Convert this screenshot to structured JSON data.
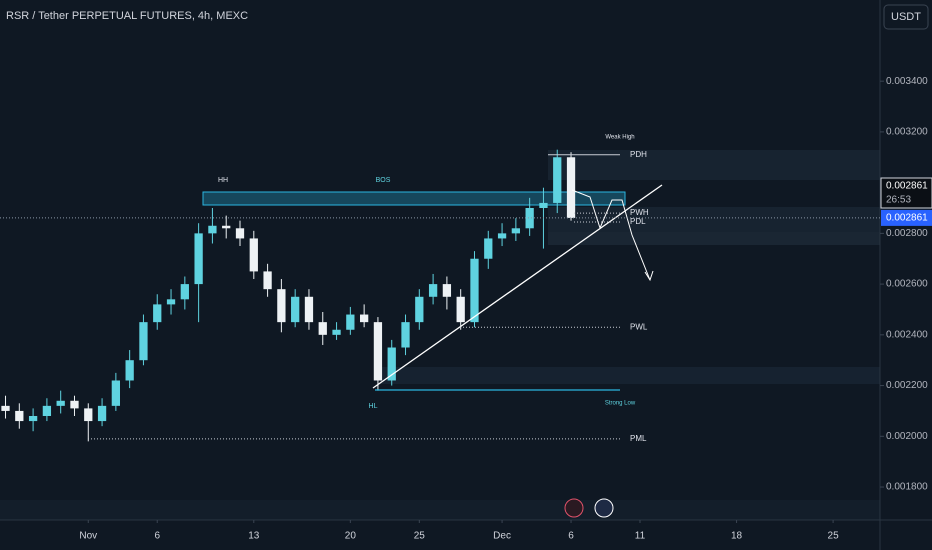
{
  "chart_data": {
    "type": "candlestick",
    "title": "RSR / Tether PERPETUAL FUTURES, 4h, MEXC",
    "currency": "USDT",
    "x": [
      -6,
      -5,
      -4,
      -3,
      -2,
      -1,
      0,
      1,
      2,
      3,
      4,
      5,
      6,
      7,
      8,
      9,
      10,
      11,
      12,
      13,
      14,
      15,
      16,
      17,
      18,
      19,
      20,
      21,
      22,
      23,
      24,
      25,
      26,
      27,
      28,
      29,
      30,
      31,
      32,
      33,
      34,
      35
    ],
    "open": [
      0.00212,
      0.0021,
      0.00206,
      0.00208,
      0.00212,
      0.00214,
      0.00211,
      0.00206,
      0.00212,
      0.00222,
      0.0023,
      0.00245,
      0.00252,
      0.00254,
      0.0026,
      0.0028,
      0.00283,
      0.00282,
      0.00278,
      0.00265,
      0.00258,
      0.00245,
      0.00255,
      0.00245,
      0.0024,
      0.00242,
      0.00248,
      0.00245,
      0.00222,
      0.00235,
      0.00245,
      0.00255,
      0.0026,
      0.00255,
      0.00245,
      0.0027,
      0.00278,
      0.0028,
      0.00282,
      0.0029,
      0.00292,
      0.0031
    ],
    "high": [
      0.00216,
      0.00213,
      0.00211,
      0.00215,
      0.00218,
      0.00216,
      0.00213,
      0.00215,
      0.00225,
      0.00234,
      0.00248,
      0.00256,
      0.00258,
      0.00263,
      0.00284,
      0.0029,
      0.00287,
      0.00285,
      0.00281,
      0.00268,
      0.00262,
      0.00258,
      0.00258,
      0.00249,
      0.00245,
      0.00251,
      0.00252,
      0.00247,
      0.00238,
      0.00248,
      0.00258,
      0.00264,
      0.00263,
      0.00258,
      0.00273,
      0.00281,
      0.00284,
      0.00286,
      0.00294,
      0.00298,
      0.00313,
      0.00312
    ],
    "low": [
      0.00207,
      0.00203,
      0.00202,
      0.00206,
      0.00209,
      0.00208,
      0.00198,
      0.00204,
      0.0021,
      0.00219,
      0.00228,
      0.00242,
      0.00248,
      0.0025,
      0.00245,
      0.00276,
      0.00278,
      0.00275,
      0.00262,
      0.00255,
      0.00241,
      0.00243,
      0.00242,
      0.00236,
      0.00238,
      0.0024,
      0.00243,
      0.00218,
      0.0022,
      0.00232,
      0.00242,
      0.00252,
      0.0025,
      0.00242,
      0.00243,
      0.00266,
      0.00275,
      0.00277,
      0.00279,
      0.00274,
      0.00288,
      0.00285
    ],
    "close": [
      0.0021,
      0.00206,
      0.00208,
      0.00212,
      0.00214,
      0.00211,
      0.00206,
      0.00212,
      0.00222,
      0.0023,
      0.00245,
      0.00252,
      0.00254,
      0.0026,
      0.0028,
      0.00283,
      0.00282,
      0.00278,
      0.00265,
      0.00258,
      0.00245,
      0.00255,
      0.00245,
      0.0024,
      0.00242,
      0.00248,
      0.00245,
      0.00222,
      0.00235,
      0.00245,
      0.00255,
      0.0026,
      0.00255,
      0.00245,
      0.0027,
      0.00278,
      0.0028,
      0.00282,
      0.0029,
      0.00292,
      0.0031,
      0.002861
    ],
    "up_color": "#5fd3e0",
    "down_color": "#eef2f5",
    "xlim": [
      -6.4,
      57.4
    ],
    "xticks": [
      {
        "value": 0,
        "label": "Nov"
      },
      {
        "value": 5,
        "label": "6"
      },
      {
        "value": 12,
        "label": "13"
      },
      {
        "value": 19,
        "label": "20"
      },
      {
        "value": 24,
        "label": "25"
      },
      {
        "value": 30,
        "label": "Dec"
      },
      {
        "value": 35,
        "label": "6"
      },
      {
        "value": 40,
        "label": "11"
      },
      {
        "value": 47,
        "label": "18"
      },
      {
        "value": 54,
        "label": "25"
      }
    ],
    "ylim": [
      0.00167,
      0.00372
    ],
    "yticks": [
      {
        "value": 0.0018,
        "label": "0.001800"
      },
      {
        "value": 0.002,
        "label": "0.002000"
      },
      {
        "value": 0.0022,
        "label": "0.002200"
      },
      {
        "value": 0.0024,
        "label": "0.002400"
      },
      {
        "value": 0.0026,
        "label": "0.002600"
      },
      {
        "value": 0.0028,
        "label": "0.002800"
      },
      {
        "value": 0.0032,
        "label": "0.003200"
      },
      {
        "value": 0.0034,
        "label": "0.003400"
      }
    ],
    "last_price": 0.002861,
    "countdown": "26:53",
    "levels": [
      {
        "label": "PDH",
        "value": 0.00311
      },
      {
        "label": "PWH",
        "value": 0.00288
      },
      {
        "label": "PDL",
        "value": 0.002845
      },
      {
        "label": "PWL",
        "value": 0.00243
      },
      {
        "label": "PML",
        "value": 0.00199
      }
    ],
    "annotations": {
      "hh": "HH",
      "bos": "BOS",
      "weak_high": "Weak High",
      "hl": "HL",
      "strong_low": "Strong Low"
    }
  }
}
